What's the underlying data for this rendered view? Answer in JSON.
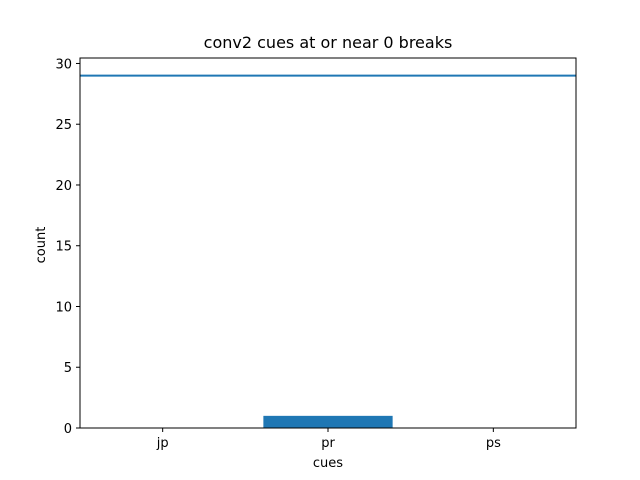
{
  "chart_data": {
    "type": "bar",
    "title": "conv2 cues at or near 0 breaks",
    "xlabel": "cues",
    "ylabel": "count",
    "categories": [
      "jp",
      "pr",
      "ps"
    ],
    "values": [
      0,
      1,
      0
    ],
    "ylim": [
      0,
      30.45
    ],
    "yticks": [
      0,
      5,
      10,
      15,
      20,
      25,
      30
    ],
    "ytick_labels": [
      "0",
      "5",
      "10",
      "15",
      "20",
      "25",
      "30"
    ],
    "reference_line": {
      "y": 29,
      "color": "#1f77b4"
    },
    "bar_color": "#1f77b4",
    "grid": false,
    "legend": "none"
  }
}
